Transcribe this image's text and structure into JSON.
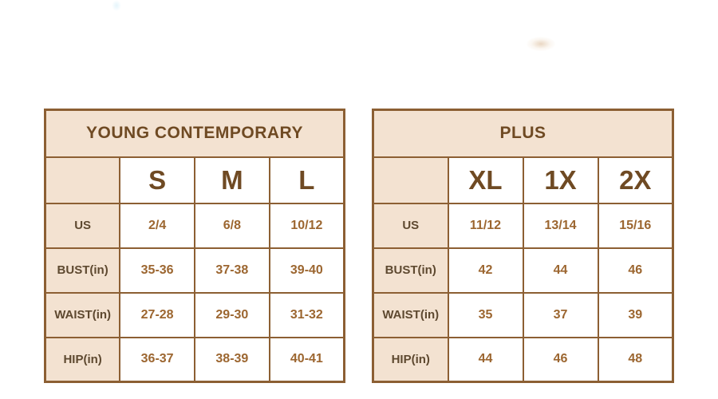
{
  "colors": {
    "background": "#ffffff",
    "table_fill": "#f3e2d1",
    "border": "#8c5f33",
    "heading_text": "#6f4a23",
    "label_text": "#5e4930",
    "value_text": "#9c6630"
  },
  "chart_data": [
    {
      "type": "table",
      "title": "YOUNG CONTEMPORARY",
      "columns": [
        "",
        "S",
        "M",
        "L"
      ],
      "row_labels": [
        "US",
        "BUST(in)",
        "WAIST(in)",
        "HIP(in)"
      ],
      "rows": [
        [
          "US",
          "2/4",
          "6/8",
          "10/12"
        ],
        [
          "BUST(in)",
          "35-36",
          "37-38",
          "39-40"
        ],
        [
          "WAIST(in)",
          "27-28",
          "29-30",
          "31-32"
        ],
        [
          "HIP(in)",
          "36-37",
          "38-39",
          "40-41"
        ]
      ]
    },
    {
      "type": "table",
      "title": "PLUS",
      "columns": [
        "",
        "XL",
        "1X",
        "2X"
      ],
      "row_labels": [
        "US",
        "BUST(in)",
        "WAIST(in)",
        "HIP(in)"
      ],
      "rows": [
        [
          "US",
          "11/12",
          "13/14",
          "15/16"
        ],
        [
          "BUST(in)",
          "42",
          "44",
          "46"
        ],
        [
          "WAIST(in)",
          "35",
          "37",
          "39"
        ],
        [
          "HIP(in)",
          "44",
          "46",
          "48"
        ]
      ]
    }
  ]
}
